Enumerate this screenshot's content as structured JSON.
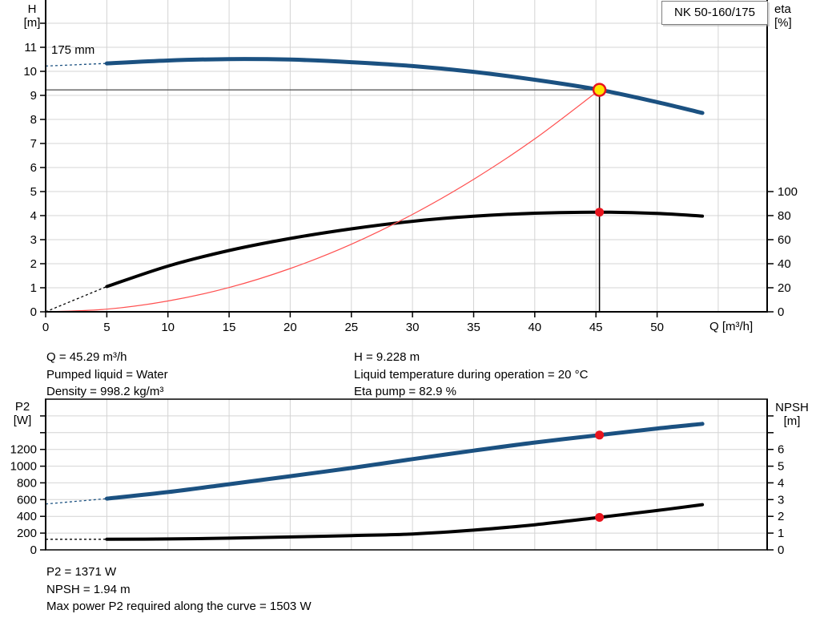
{
  "header": {
    "pump_name": "NK 50-160/175"
  },
  "chart_data": [
    {
      "type": "line",
      "name": "qh",
      "title": "NK 50-160/175",
      "curve_label": "175 mm",
      "xlabel": "Q [m³/h]",
      "ylabel_left_1": "H",
      "ylabel_left_2": "[m]",
      "ylabel_right_1": "eta",
      "ylabel_right_2": "[%]",
      "xlim": [
        0,
        59
      ],
      "x_ticks": [
        0,
        5,
        10,
        15,
        20,
        25,
        30,
        35,
        40,
        45,
        50
      ],
      "ylim_left": [
        0,
        13
      ],
      "y_ticks_left": [
        0,
        1,
        2,
        3,
        4,
        5,
        6,
        7,
        8,
        9,
        10,
        11
      ],
      "y_ticks_left_unlabeled": [
        12
      ],
      "ylim_right": [
        0,
        260
      ],
      "y_ticks_right": [
        0,
        20,
        40,
        60,
        80,
        100
      ],
      "y_ticks_right_unlabeled": [],
      "grid": true,
      "series": [
        {
          "name": "head",
          "axis": "left",
          "color_key": "curve_blue",
          "width": 5,
          "dash_points": [
            [
              0,
              10.22
            ],
            [
              5,
              10.33
            ]
          ],
          "points": [
            [
              5,
              10.33
            ],
            [
              10,
              10.45
            ],
            [
              15,
              10.51
            ],
            [
              20,
              10.49
            ],
            [
              25,
              10.38
            ],
            [
              30,
              10.22
            ],
            [
              35,
              9.98
            ],
            [
              40,
              9.65
            ],
            [
              45.29,
              9.23
            ],
            [
              50,
              8.72
            ],
            [
              53.7,
              8.27
            ]
          ]
        },
        {
          "name": "efficiency",
          "axis": "right",
          "color_key": "curve_black",
          "width": 4,
          "dash_points": [
            [
              0,
              0
            ],
            [
              5,
              21
            ]
          ],
          "points": [
            [
              5,
              21
            ],
            [
              10,
              38
            ],
            [
              15,
              51
            ],
            [
              20,
              61
            ],
            [
              25,
              69
            ],
            [
              30,
              75.3
            ],
            [
              35,
              79.5
            ],
            [
              40,
              82
            ],
            [
              45.29,
              82.9
            ],
            [
              50,
              81.8
            ],
            [
              53.7,
              79.6
            ]
          ]
        },
        {
          "name": "system-curve",
          "axis": "left",
          "color_key": "curve_red",
          "width": 1.2,
          "points": [
            [
              0,
              0
            ],
            [
              5,
              0.11
            ],
            [
              10,
              0.45
            ],
            [
              15,
              1.01
            ],
            [
              20,
              1.8
            ],
            [
              25,
              2.81
            ],
            [
              30,
              4.05
            ],
            [
              35,
              5.51
            ],
            [
              40,
              7.19
            ],
            [
              45.29,
              9.23
            ]
          ]
        }
      ],
      "operating_point": {
        "q": 45.29,
        "h": 9.23,
        "eta": 82.9
      }
    },
    {
      "type": "line",
      "name": "p2-npsh",
      "ylabel_left_1": "P2",
      "ylabel_left_2": "[W]",
      "ylabel_right_1": "NPSH",
      "ylabel_right_2": "[m]",
      "xlim": [
        0,
        59
      ],
      "x_ticks": [],
      "ylim_left": [
        0,
        1800
      ],
      "y_ticks_left": [
        0,
        200,
        400,
        600,
        800,
        1000,
        1200
      ],
      "y_ticks_left_unlabeled": [
        1400,
        1600
      ],
      "ylim_right": [
        0,
        9
      ],
      "y_ticks_right": [
        0,
        1,
        2,
        3,
        4,
        5,
        6
      ],
      "y_ticks_right_unlabeled": [
        7,
        8
      ],
      "grid": true,
      "series": [
        {
          "name": "p2",
          "axis": "left",
          "color_key": "curve_blue",
          "width": 5,
          "dash_points": [
            [
              0,
              548
            ],
            [
              5,
              612
            ]
          ],
          "points": [
            [
              5,
              612
            ],
            [
              10,
              690
            ],
            [
              15,
              784
            ],
            [
              20,
              880
            ],
            [
              25,
              978
            ],
            [
              30,
              1084
            ],
            [
              35,
              1185
            ],
            [
              40,
              1282
            ],
            [
              45.29,
              1371
            ],
            [
              50,
              1450
            ],
            [
              53.7,
              1505
            ]
          ]
        },
        {
          "name": "npsh",
          "axis": "right",
          "color_key": "curve_black",
          "width": 4,
          "dash_points": [
            [
              0,
              0.63
            ],
            [
              5,
              0.63
            ]
          ],
          "points": [
            [
              5,
              0.63
            ],
            [
              10,
              0.65
            ],
            [
              15,
              0.7
            ],
            [
              20,
              0.77
            ],
            [
              25,
              0.85
            ],
            [
              30,
              0.95
            ],
            [
              35,
              1.18
            ],
            [
              40,
              1.5
            ],
            [
              45.29,
              1.94
            ],
            [
              50,
              2.35
            ],
            [
              53.7,
              2.7
            ]
          ]
        }
      ],
      "operating_point": {
        "q": 45.29,
        "p2": 1371,
        "npsh": 1.94
      }
    }
  ],
  "info_top": {
    "left": [
      "Q = 45.29 m³/h",
      "Pumped liquid = Water",
      "Density = 998.2 kg/m³"
    ],
    "right": [
      "H = 9.228 m",
      "Liquid temperature during operation = 20 °C",
      "Eta pump = 82.9 %"
    ]
  },
  "info_bottom": [
    "P2 = 1371 W",
    "NPSH = 1.94 m",
    "Max power P2 required along the curve = 1503 W"
  ],
  "colors": {
    "curve_blue": "#1b5181",
    "curve_black": "#000000",
    "curve_red": "#ff5050",
    "marker_red": "#e8141e",
    "marker_yellow": "#ffe600",
    "grid": "#d4d4d4",
    "axis": "#000000",
    "op_line": "#4d4d4d",
    "box_border": "#7f7f7f"
  }
}
